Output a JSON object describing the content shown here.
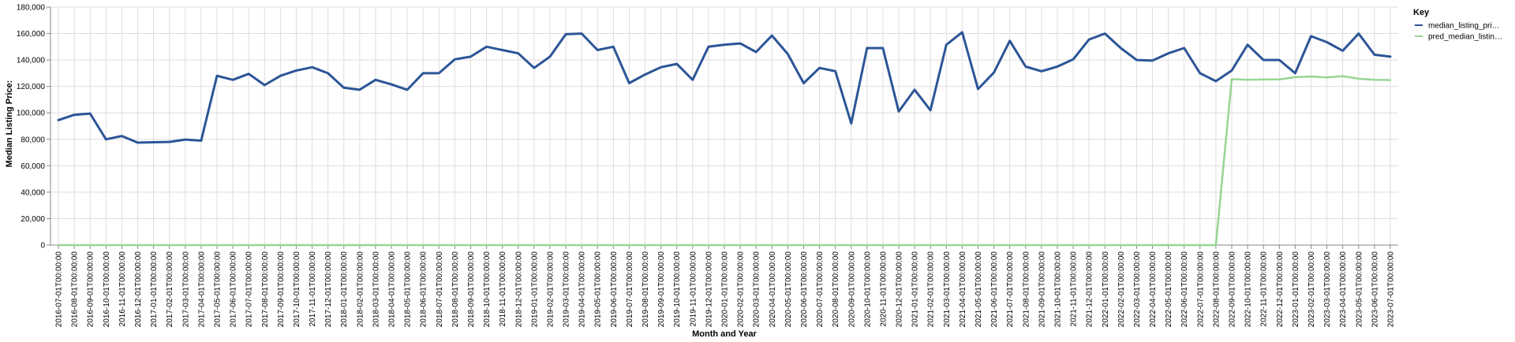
{
  "chart_data": {
    "type": "line",
    "xlabel": "Month and Year",
    "ylabel": "Median Listing Price:",
    "ylim": [
      0,
      180000
    ],
    "yticks": [
      0,
      20000,
      40000,
      60000,
      80000,
      100000,
      120000,
      140000,
      160000,
      180000
    ],
    "ytick_labels": [
      "0",
      "20,000",
      "40,000",
      "60,000",
      "80,000",
      "100,000",
      "120,000",
      "140,000",
      "160,000",
      "180,000"
    ],
    "grid": true,
    "legend_title": "Key",
    "legend_position": "right",
    "x": [
      "2016-07-01T00:00:00",
      "2016-08-01T00:00:00",
      "2016-09-01T00:00:00",
      "2016-10-01T00:00:00",
      "2016-11-01T00:00:00",
      "2016-12-01T00:00:00",
      "2017-01-01T00:00:00",
      "2017-02-01T00:00:00",
      "2017-03-01T00:00:00",
      "2017-04-01T00:00:00",
      "2017-05-01T00:00:00",
      "2017-06-01T00:00:00",
      "2017-07-01T00:00:00",
      "2017-08-01T00:00:00",
      "2017-09-01T00:00:00",
      "2017-10-01T00:00:00",
      "2017-11-01T00:00:00",
      "2017-12-01T00:00:00",
      "2018-01-01T00:00:00",
      "2018-02-01T00:00:00",
      "2018-03-01T00:00:00",
      "2018-04-01T00:00:00",
      "2018-05-01T00:00:00",
      "2018-06-01T00:00:00",
      "2018-07-01T00:00:00",
      "2018-08-01T00:00:00",
      "2018-09-01T00:00:00",
      "2018-10-01T00:00:00",
      "2018-11-01T00:00:00",
      "2018-12-01T00:00:00",
      "2019-01-01T00:00:00",
      "2019-02-01T00:00:00",
      "2019-03-01T00:00:00",
      "2019-04-01T00:00:00",
      "2019-05-01T00:00:00",
      "2019-06-01T00:00:00",
      "2019-07-01T00:00:00",
      "2019-08-01T00:00:00",
      "2019-09-01T00:00:00",
      "2019-10-01T00:00:00",
      "2019-11-01T00:00:00",
      "2019-12-01T00:00:00",
      "2020-01-01T00:00:00",
      "2020-02-01T00:00:00",
      "2020-03-01T00:00:00",
      "2020-04-01T00:00:00",
      "2020-05-01T00:00:00",
      "2020-06-01T00:00:00",
      "2020-07-01T00:00:00",
      "2020-08-01T00:00:00",
      "2020-09-01T00:00:00",
      "2020-10-01T00:00:00",
      "2020-11-01T00:00:00",
      "2020-12-01T00:00:00",
      "2021-01-01T00:00:00",
      "2021-02-01T00:00:00",
      "2021-03-01T00:00:00",
      "2021-04-01T00:00:00",
      "2021-05-01T00:00:00",
      "2021-06-01T00:00:00",
      "2021-07-01T00:00:00",
      "2021-08-01T00:00:00",
      "2021-09-01T00:00:00",
      "2021-10-01T00:00:00",
      "2021-11-01T00:00:00",
      "2021-12-01T00:00:00",
      "2022-01-01T00:00:00",
      "2022-02-01T00:00:00",
      "2022-03-01T00:00:00",
      "2022-04-01T00:00:00",
      "2022-05-01T00:00:00",
      "2022-06-01T00:00:00",
      "2022-07-01T00:00:00",
      "2022-08-01T00:00:00",
      "2022-09-01T00:00:00",
      "2022-10-01T00:00:00",
      "2022-11-01T00:00:00",
      "2022-12-01T00:00:00",
      "2023-01-01T00:00:00",
      "2023-02-01T00:00:00",
      "2023-03-01T00:00:00",
      "2023-04-01T00:00:00",
      "2023-05-01T00:00:00",
      "2023-06-01T00:00:00",
      "2023-07-01T00:00:00"
    ],
    "series": [
      {
        "name": "median_listing_pri…",
        "color": "#2c5597",
        "values": [
          94500,
          98500,
          99500,
          80000,
          82500,
          77500,
          77800,
          78000,
          79800,
          79000,
          128000,
          125000,
          129500,
          121000,
          128000,
          132000,
          134500,
          130000,
          119000,
          117500,
          125000,
          121500,
          117500,
          130000,
          130000,
          140500,
          142500,
          150000,
          147500,
          145000,
          134000,
          142500,
          159500,
          160000,
          147500,
          150000,
          122500,
          129000,
          134500,
          137000,
          125000,
          150000,
          151500,
          152500,
          146000,
          158500,
          144500,
          122500,
          134000,
          131500,
          92000,
          149000,
          149000,
          101000,
          117500,
          102000,
          151500,
          161000,
          118000,
          130500,
          154500,
          135000,
          131500,
          135000,
          140500,
          155500,
          160000,
          149000,
          140000,
          139500,
          145000,
          149000,
          130000,
          124000,
          132000,
          151500,
          140000,
          140000,
          130000,
          158000,
          153500,
          147000,
          160000,
          144000,
          142500
        ]
      },
      {
        "name": "pred_median_listin…",
        "color": "#98d594",
        "values": [
          0,
          0,
          0,
          0,
          0,
          0,
          0,
          0,
          0,
          0,
          0,
          0,
          0,
          0,
          0,
          0,
          0,
          0,
          0,
          0,
          0,
          0,
          0,
          0,
          0,
          0,
          0,
          0,
          0,
          0,
          0,
          0,
          0,
          0,
          0,
          0,
          0,
          0,
          0,
          0,
          0,
          0,
          0,
          0,
          0,
          0,
          0,
          0,
          0,
          0,
          0,
          0,
          0,
          0,
          0,
          0,
          0,
          0,
          0,
          0,
          0,
          0,
          0,
          0,
          0,
          0,
          0,
          0,
          0,
          0,
          0,
          0,
          0,
          0,
          125500,
          125000,
          125200,
          125300,
          127000,
          127500,
          126800,
          127800,
          125800,
          125000,
          124800
        ]
      }
    ]
  }
}
